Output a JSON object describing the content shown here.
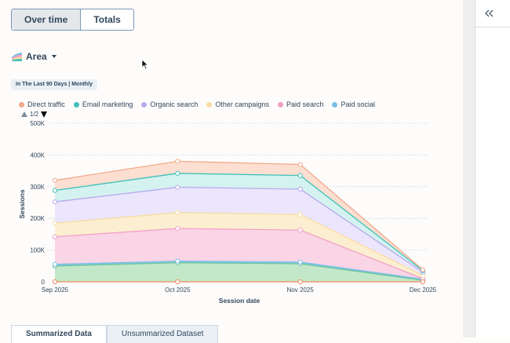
{
  "toggle": {
    "options": [
      "Over time",
      "Totals"
    ],
    "active": "Over time"
  },
  "chart_type_selector": {
    "label": "Area",
    "icon": "area-chart-icon"
  },
  "date_range_badge": "In The Last 90 Days | Monthly",
  "legend": {
    "items": [
      {
        "name": "Direct traffic",
        "color": "#f2a98c"
      },
      {
        "name": "Email marketing",
        "color": "#3fc0b8"
      },
      {
        "name": "Organic search",
        "color": "#b9a9ec"
      },
      {
        "name": "Other campaigns",
        "color": "#f9dc9f"
      },
      {
        "name": "Paid search",
        "color": "#f2a0c7"
      },
      {
        "name": "Paid social",
        "color": "#78bfe6"
      }
    ],
    "pager": "1/2"
  },
  "chart_data": {
    "type": "area",
    "stacked": true,
    "x": [
      "Sep 2025",
      "Oct 2025",
      "Nov 2025",
      "Dec 2025"
    ],
    "xlabel": "Session date",
    "ylabel": "Sessions",
    "ylim": [
      0,
      500000
    ],
    "yticks": [
      "0",
      "100K",
      "200K",
      "300K",
      "400K",
      "500K"
    ],
    "grid": true,
    "series": [
      {
        "name": "Paid social",
        "color": "#b7e4c0",
        "line": "#6cc49b",
        "cumulative": [
          50000,
          60000,
          57000,
          5000
        ]
      },
      {
        "name": "Paid social",
        "color": "#78bfe6",
        "line": "#78bfe6",
        "cumulative": [
          55000,
          65000,
          62000,
          8000
        ]
      },
      {
        "name": "Paid search",
        "color": "#f9cee0",
        "line": "#f2a0c7",
        "cumulative": [
          142000,
          168000,
          163000,
          10000
        ]
      },
      {
        "name": "Other campaigns",
        "color": "#fcecc9",
        "line": "#f9dc9f",
        "cumulative": [
          185000,
          218000,
          212000,
          20000
        ]
      },
      {
        "name": "Organic search",
        "color": "#e8e2fb",
        "line": "#b9a9ec",
        "cumulative": [
          252000,
          298000,
          292000,
          30000
        ]
      },
      {
        "name": "Email marketing",
        "color": "#cdf0ec",
        "line": "#3fc0b8",
        "cumulative": [
          288000,
          342000,
          335000,
          35000
        ]
      },
      {
        "name": "Direct traffic",
        "color": "#fbd9c9",
        "line": "#f2a98c",
        "cumulative": [
          320000,
          380000,
          370000,
          38000
        ]
      }
    ],
    "baseline": {
      "name": "Direct traffic",
      "color": "#f08a5d",
      "values": [
        0,
        0,
        0,
        0
      ]
    }
  },
  "bottom_tabs": [
    "Summarized Data",
    "Unsummarized Dataset"
  ],
  "panel": {
    "collapse_icon": "double-chevron-left-icon"
  }
}
